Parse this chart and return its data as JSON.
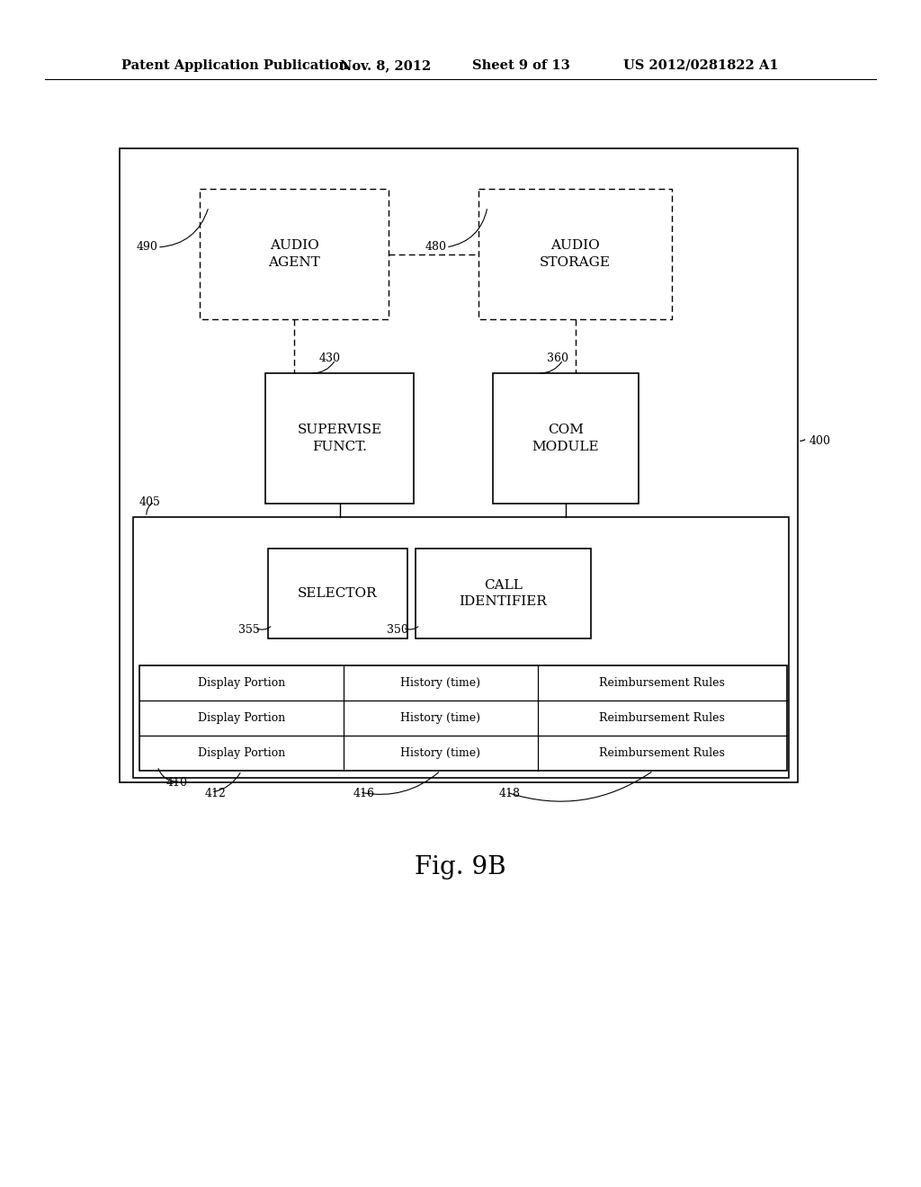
{
  "background_color": "#ffffff",
  "header_text": "Patent Application Publication",
  "header_date": "Nov. 8, 2012",
  "header_sheet": "Sheet 9 of 13",
  "header_patent": "US 2012/0281822 A1",
  "figure_label": "Fig. 9B",
  "table_rows": [
    "Display Portion",
    "Display Portion",
    "Display Portion"
  ],
  "table_col2": [
    "History (time)",
    "History (time)",
    "History (time)"
  ],
  "table_col3": [
    "Reimbursement Rules",
    "Reimbursement Rules",
    "Reimbursement Rules"
  ],
  "table_col1_ref": "412",
  "table_col2_ref": "416",
  "table_col3_ref": "418",
  "table_ref": "410"
}
